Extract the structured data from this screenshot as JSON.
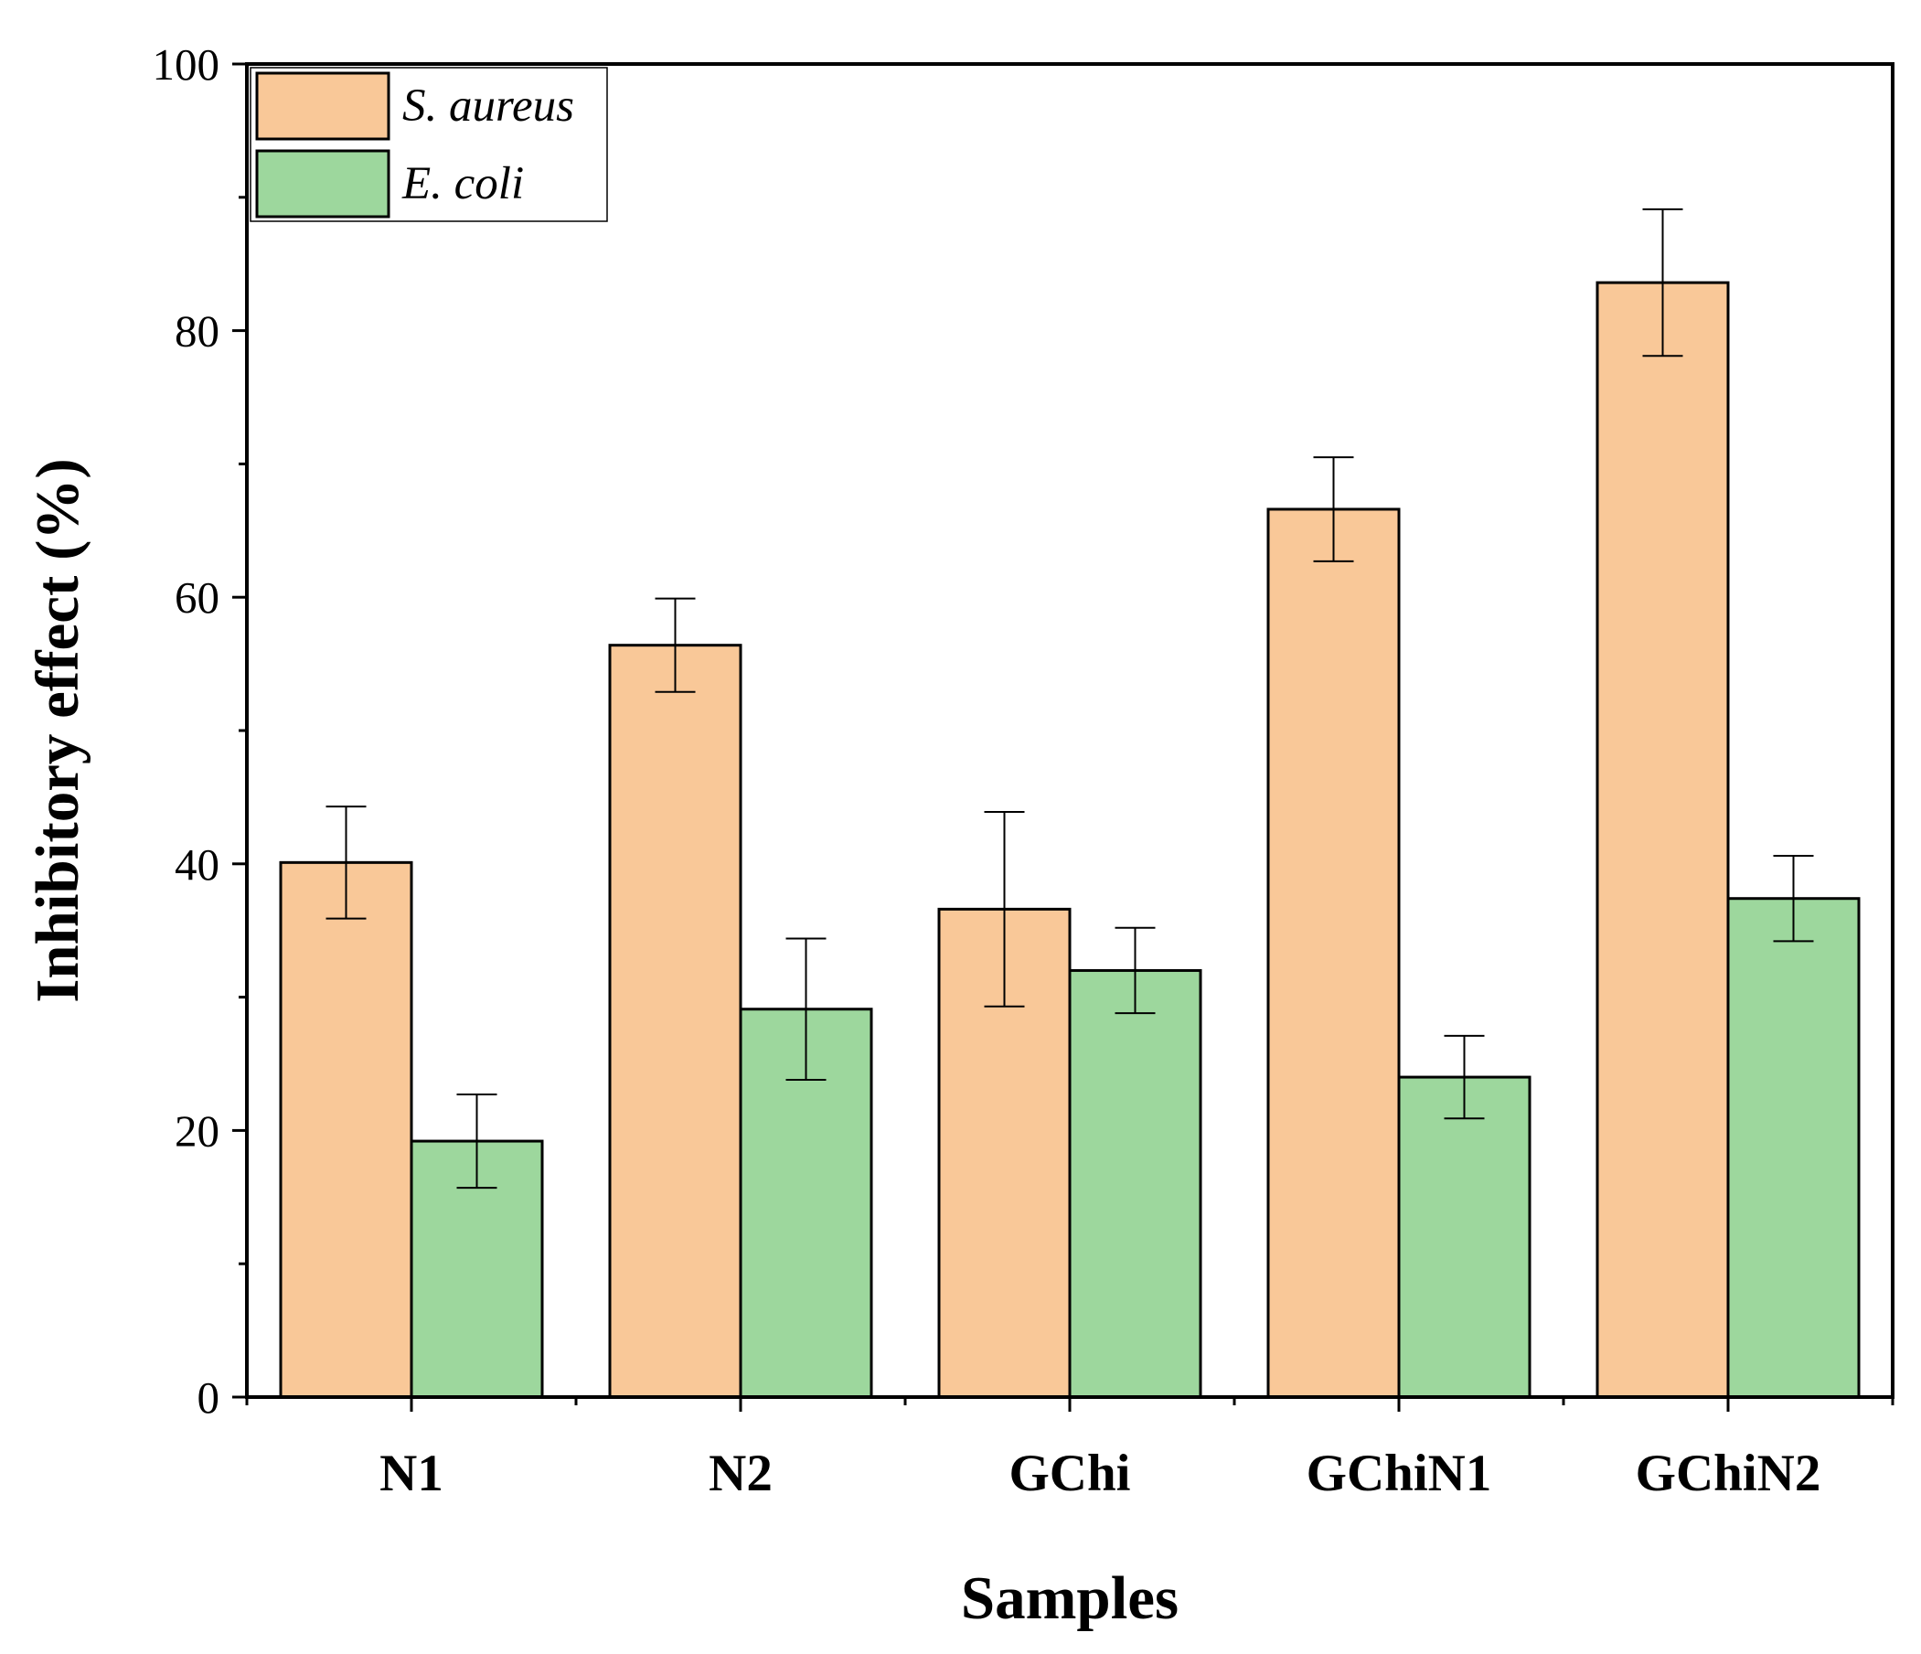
{
  "chart_data": {
    "type": "bar",
    "title": "",
    "xlabel": "Samples",
    "ylabel": "Inhibitory effect (%)",
    "ylim": [
      0,
      100
    ],
    "yticks": [
      0,
      20,
      40,
      60,
      80,
      100
    ],
    "categories": [
      "N1",
      "N2",
      "GChi",
      "GChiN1",
      "GChiN2"
    ],
    "series": [
      {
        "name": "S. aureus",
        "color": "#f9c898",
        "values": [
          40.1,
          56.4,
          36.6,
          66.6,
          83.6
        ],
        "errors": [
          4.2,
          3.5,
          7.3,
          3.9,
          5.5
        ]
      },
      {
        "name": "E. coli",
        "color": "#9dd79d",
        "values": [
          19.2,
          29.1,
          32.0,
          24.0,
          37.4
        ],
        "errors": [
          3.5,
          5.3,
          3.2,
          3.1,
          3.2
        ]
      }
    ],
    "legend_position": "top-left",
    "error_bars": true
  }
}
